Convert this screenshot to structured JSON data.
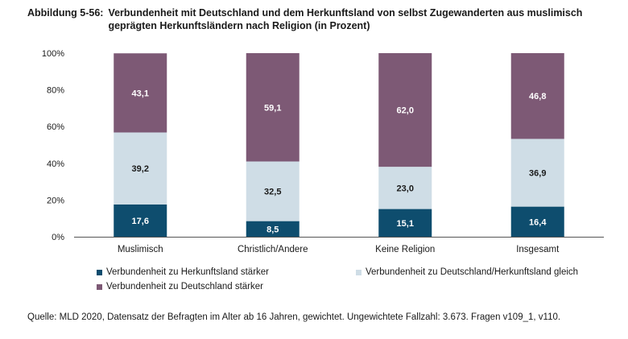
{
  "header": {
    "number": "Abbildung 5-56:",
    "title": "Verbundenheit mit Deutschland und dem Herkunftsland von selbst Zugewanderten aus muslimisch geprägten Herkunftsländern nach Religion (in Prozent)"
  },
  "chart_data": {
    "type": "bar",
    "stacked": true,
    "title": "Verbundenheit mit Deutschland und dem Herkunftsland von selbst Zugewanderten aus muslimisch geprägten Herkunftsländern nach Religion (in Prozent)",
    "xlabel": "",
    "ylabel": "",
    "ylim": [
      0,
      100
    ],
    "y_ticks": [
      "0%",
      "20%",
      "40%",
      "60%",
      "80%",
      "100%"
    ],
    "y_tick_values": [
      0,
      20,
      40,
      60,
      80,
      100
    ],
    "grid": false,
    "categories": [
      "Muslimisch",
      "Christlich/Andere",
      "Keine Religion",
      "Insgesamt"
    ],
    "series": [
      {
        "name": "Verbundenheit zu Herkunftsland stärker",
        "color": "#0e4d6e",
        "values": [
          17.6,
          8.5,
          15.1,
          16.4
        ],
        "labels": [
          "17,6",
          "8,5",
          "15,1",
          "16,4"
        ],
        "label_color": "#ffffff"
      },
      {
        "name": "Verbundenheit zu Deutschland/Herkunftsland gleich",
        "color": "#cfdde6",
        "values": [
          39.2,
          32.5,
          23.0,
          36.9
        ],
        "labels": [
          "39,2",
          "32,5",
          "23,0",
          "36,9"
        ],
        "label_color": "#1a1a1a"
      },
      {
        "name": "Verbundenheit zu Deutschland stärker",
        "color": "#7d5975",
        "values": [
          43.1,
          59.1,
          62.0,
          46.8
        ],
        "labels": [
          "43,1",
          "59,1",
          "62,0",
          "46,8"
        ],
        "label_color": "#ffffff"
      }
    ],
    "legend_position": "bottom"
  },
  "source": {
    "text": "Quelle: MLD 2020, Datensatz der Befragten im Alter ab 16 Jahren, gewichtet. Ungewichtete Fallzahl: 3.673. Fragen v109_1, v110."
  }
}
